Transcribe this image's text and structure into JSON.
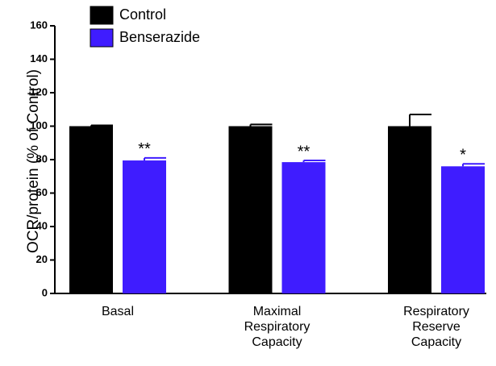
{
  "chart_data": {
    "type": "bar",
    "y_label": "OCR/protein (% of Control)",
    "categories": [
      "Basal",
      "Maximal Respiratory Capacity",
      "Respiratory Reserve Capacity"
    ],
    "series": [
      {
        "name": "Control",
        "color": "#000000",
        "values": [
          100,
          100,
          100
        ],
        "errors": [
          0.5,
          1,
          7
        ]
      },
      {
        "name": "Benserazide",
        "color": "#3f1cff",
        "values": [
          79.5,
          78.5,
          76
        ],
        "errors": [
          1.5,
          1,
          1.5
        ],
        "annotations": [
          "**",
          "**",
          "*"
        ]
      }
    ],
    "ylim": [
      0,
      160
    ],
    "yticks": [
      0,
      20,
      40,
      60,
      80,
      100,
      120,
      140,
      160
    ],
    "legend": "top-left"
  }
}
